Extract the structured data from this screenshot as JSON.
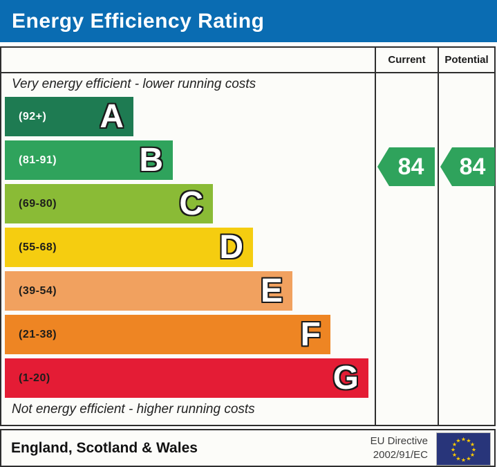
{
  "header": {
    "title": "Energy Efficiency Rating"
  },
  "captions": {
    "top": "Very energy efficient - lower running costs",
    "bottom": "Not energy efficient - higher running costs"
  },
  "chart_data": {
    "type": "bar",
    "title": "Energy Efficiency Rating",
    "categories": [
      "A",
      "B",
      "C",
      "D",
      "E",
      "F",
      "G"
    ],
    "bands": [
      {
        "letter": "A",
        "range_label": "(92+)",
        "min": 92,
        "max": 100,
        "color": "#1e7b52",
        "text_color": "#ffffff"
      },
      {
        "letter": "B",
        "range_label": "(81-91)",
        "min": 81,
        "max": 91,
        "color": "#2fa35c",
        "text_color": "#ffffff"
      },
      {
        "letter": "C",
        "range_label": "(69-80)",
        "min": 69,
        "max": 80,
        "color": "#8abb36",
        "text_color": "#1d1d1b"
      },
      {
        "letter": "D",
        "range_label": "(55-68)",
        "min": 55,
        "max": 68,
        "color": "#f5cd10",
        "text_color": "#1d1d1b"
      },
      {
        "letter": "E",
        "range_label": "(39-54)",
        "min": 39,
        "max": 54,
        "color": "#f1a15f",
        "text_color": "#1d1d1b"
      },
      {
        "letter": "F",
        "range_label": "(21-38)",
        "min": 21,
        "max": 38,
        "color": "#ee8523",
        "text_color": "#1d1d1b"
      },
      {
        "letter": "G",
        "range_label": "(1-20)",
        "min": 1,
        "max": 20,
        "color": "#e41c35",
        "text_color": "#1d1d1b"
      }
    ],
    "ratings": {
      "current": {
        "column": "Current",
        "value": 84,
        "band": "B",
        "arrow_color": "#2fa35c"
      },
      "potential": {
        "column": "Potential",
        "value": 84,
        "band": "B",
        "arrow_color": "#2fa35c"
      }
    }
  },
  "footer": {
    "region": "England, Scotland & Wales",
    "directive": [
      "EU Directive",
      "2002/91/EC"
    ],
    "flag_icon": "eu-flag",
    "flag_colors": {
      "field": "#28357a",
      "stars": "#ffcc00"
    }
  }
}
